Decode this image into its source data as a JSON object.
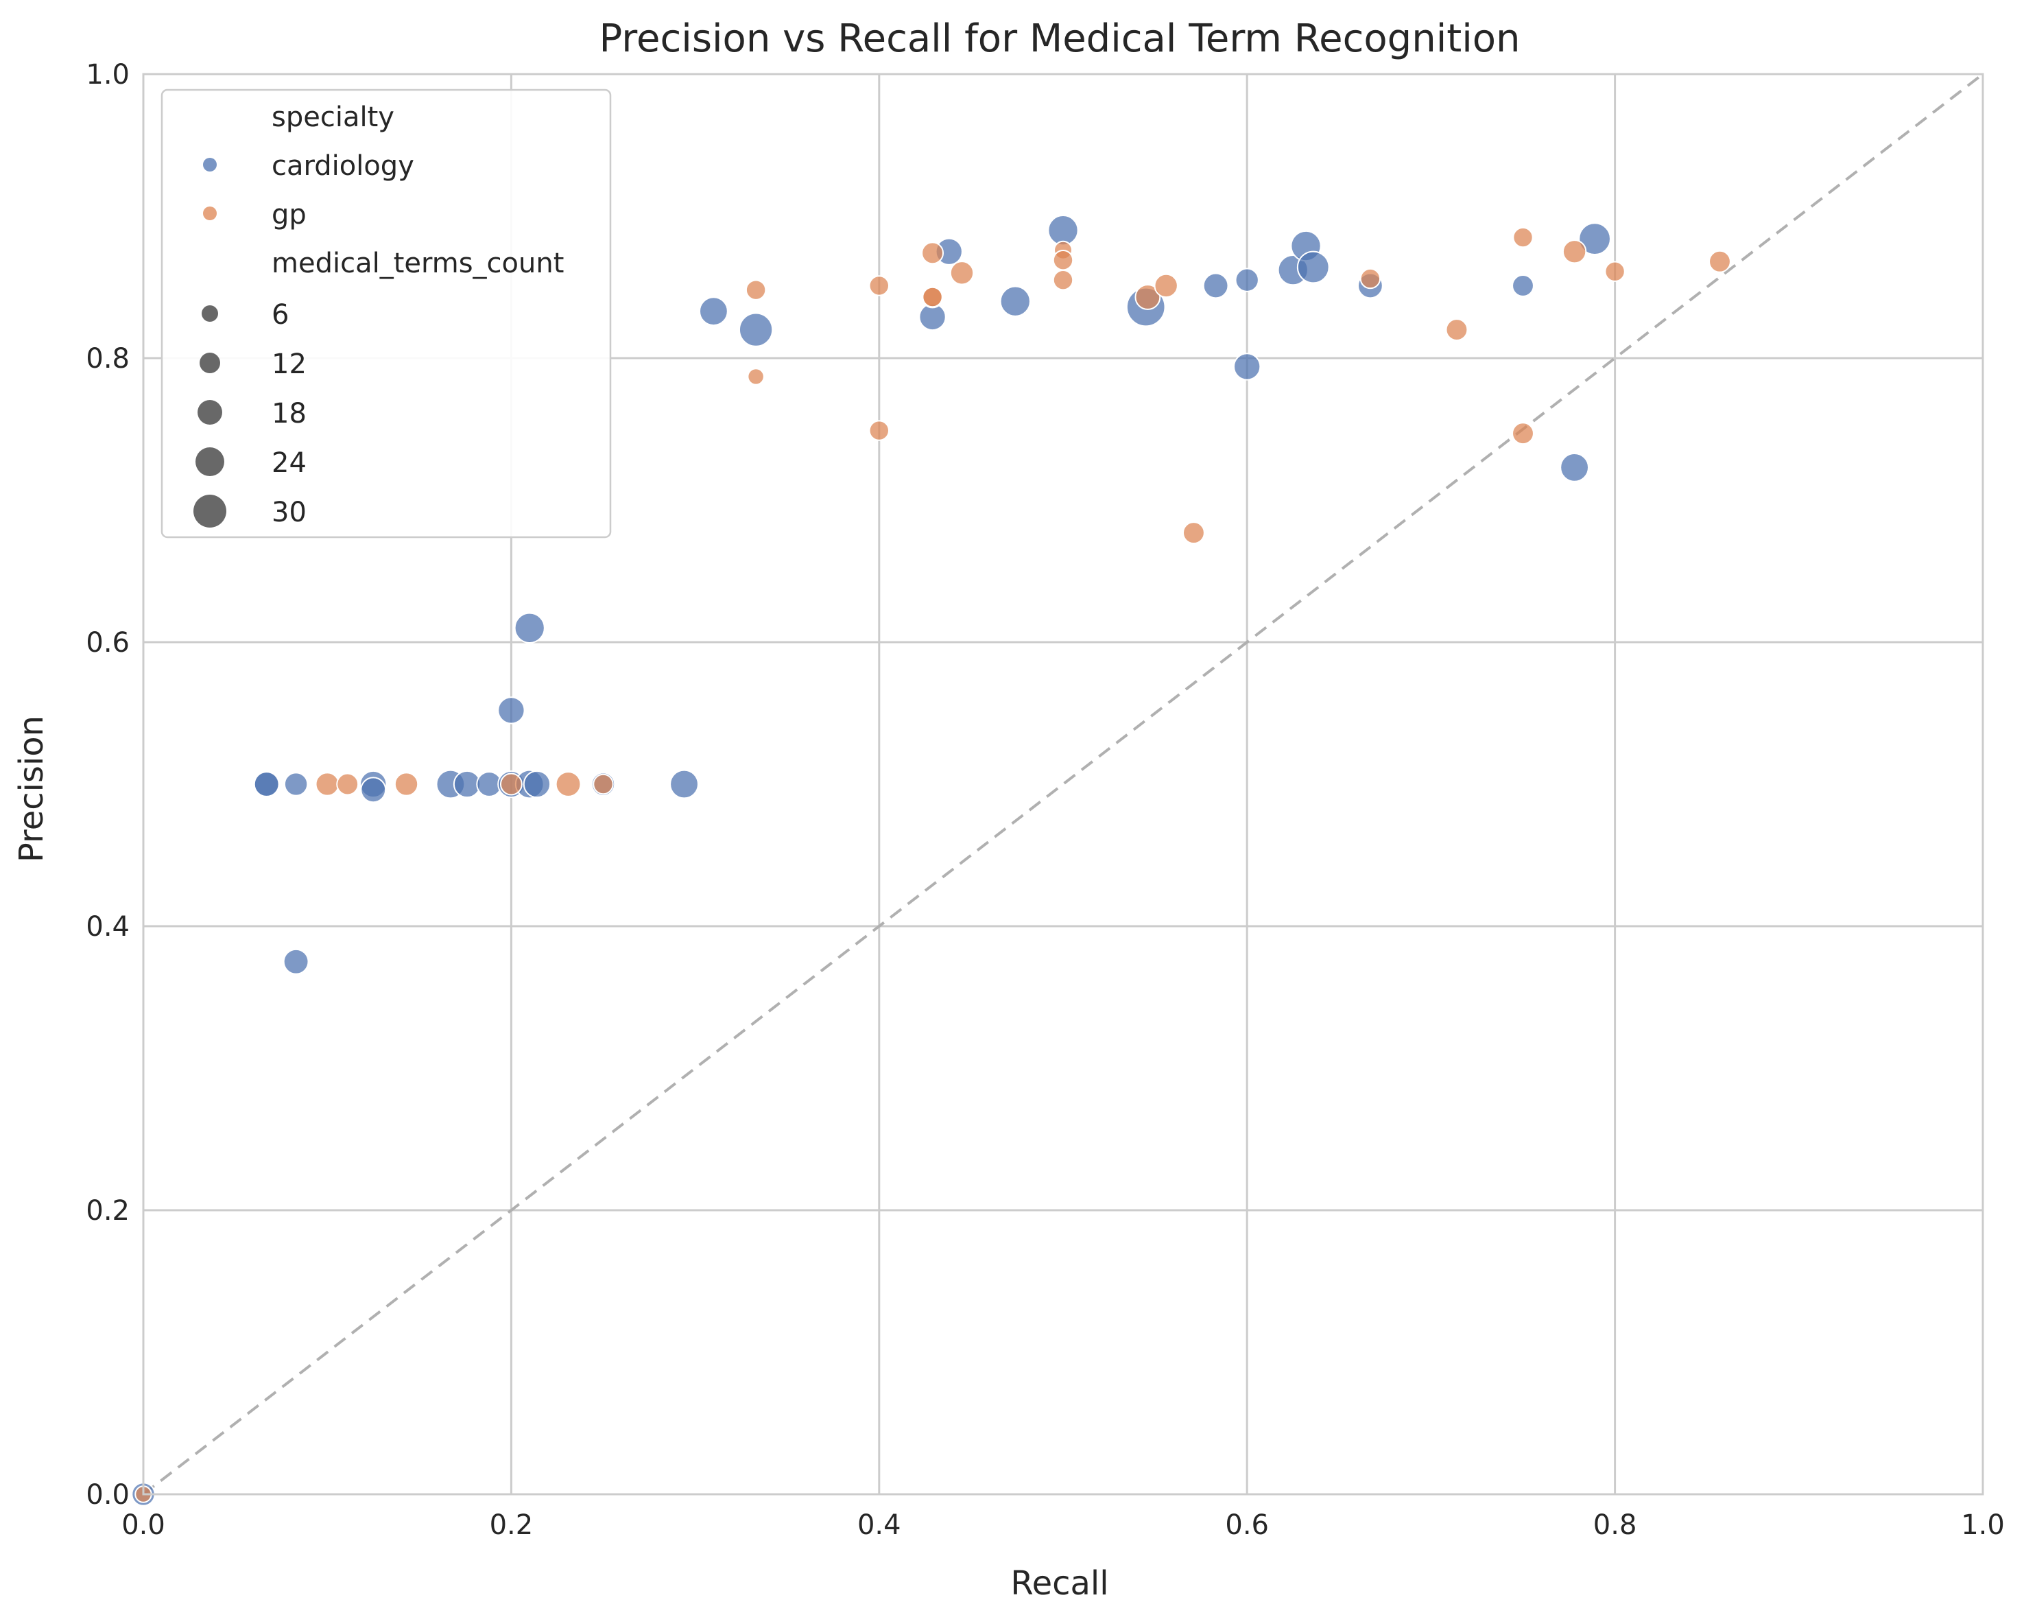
{
  "chart_data": {
    "type": "scatter",
    "title": "Precision vs Recall for Medical Term Recognition",
    "xlabel": "Recall",
    "ylabel": "Precision",
    "xlim": [
      0,
      1
    ],
    "ylim": [
      0,
      1
    ],
    "xticks": [
      "0.0",
      "0.2",
      "0.4",
      "0.6",
      "0.8",
      "1.0"
    ],
    "yticks": [
      "0.0",
      "0.2",
      "0.4",
      "0.6",
      "0.8",
      "1.0"
    ],
    "grid": true,
    "reference_line": {
      "style": "dashed",
      "from": [
        0,
        0
      ],
      "to": [
        1,
        1
      ],
      "color": "#b0b0b0"
    },
    "legend": {
      "placement": "top-left",
      "hue_title": "specialty",
      "size_title": "medical_terms_count",
      "size_entries": [
        "6",
        "12",
        "18",
        "24",
        "30"
      ]
    },
    "series": [
      {
        "name": "cardiology",
        "color": "#4c72b0",
        "points": [
          {
            "x": 0.0,
            "y": 0.0,
            "size": 14
          },
          {
            "x": 0.067,
            "y": 0.5,
            "size": 18
          },
          {
            "x": 0.067,
            "y": 0.5,
            "size": 16
          },
          {
            "x": 0.083,
            "y": 0.5,
            "size": 14
          },
          {
            "x": 0.083,
            "y": 0.375,
            "size": 16
          },
          {
            "x": 0.125,
            "y": 0.5,
            "size": 18
          },
          {
            "x": 0.125,
            "y": 0.496,
            "size": 16
          },
          {
            "x": 0.167,
            "y": 0.5,
            "size": 20
          },
          {
            "x": 0.176,
            "y": 0.5,
            "size": 18
          },
          {
            "x": 0.188,
            "y": 0.5,
            "size": 16
          },
          {
            "x": 0.2,
            "y": 0.5,
            "size": 18
          },
          {
            "x": 0.2,
            "y": 0.552,
            "size": 18
          },
          {
            "x": 0.21,
            "y": 0.5,
            "size": 20
          },
          {
            "x": 0.214,
            "y": 0.5,
            "size": 18
          },
          {
            "x": 0.21,
            "y": 0.61,
            "size": 22
          },
          {
            "x": 0.25,
            "y": 0.5,
            "size": 14
          },
          {
            "x": 0.294,
            "y": 0.5,
            "size": 20
          },
          {
            "x": 0.31,
            "y": 0.833,
            "size": 20
          },
          {
            "x": 0.333,
            "y": 0.82,
            "size": 26
          },
          {
            "x": 0.429,
            "y": 0.829,
            "size": 18
          },
          {
            "x": 0.438,
            "y": 0.875,
            "size": 18
          },
          {
            "x": 0.474,
            "y": 0.84,
            "size": 22
          },
          {
            "x": 0.5,
            "y": 0.89,
            "size": 22
          },
          {
            "x": 0.545,
            "y": 0.836,
            "size": 32
          },
          {
            "x": 0.583,
            "y": 0.851,
            "size": 16
          },
          {
            "x": 0.6,
            "y": 0.855,
            "size": 14
          },
          {
            "x": 0.6,
            "y": 0.794,
            "size": 18
          },
          {
            "x": 0.625,
            "y": 0.862,
            "size": 22
          },
          {
            "x": 0.632,
            "y": 0.879,
            "size": 22
          },
          {
            "x": 0.636,
            "y": 0.864,
            "size": 24
          },
          {
            "x": 0.667,
            "y": 0.851,
            "size": 16
          },
          {
            "x": 0.75,
            "y": 0.851,
            "size": 12
          },
          {
            "x": 0.778,
            "y": 0.723,
            "size": 20
          },
          {
            "x": 0.789,
            "y": 0.884,
            "size": 24
          }
        ]
      },
      {
        "name": "gp",
        "color": "#dd8452",
        "points": [
          {
            "x": 0.0,
            "y": 0.0,
            "size": 6
          },
          {
            "x": 0.1,
            "y": 0.5,
            "size": 14
          },
          {
            "x": 0.111,
            "y": 0.5,
            "size": 12
          },
          {
            "x": 0.143,
            "y": 0.5,
            "size": 14
          },
          {
            "x": 0.2,
            "y": 0.5,
            "size": 12
          },
          {
            "x": 0.231,
            "y": 0.5,
            "size": 16
          },
          {
            "x": 0.25,
            "y": 0.5,
            "size": 10
          },
          {
            "x": 0.333,
            "y": 0.848,
            "size": 10
          },
          {
            "x": 0.333,
            "y": 0.787,
            "size": 6
          },
          {
            "x": 0.4,
            "y": 0.851,
            "size": 10
          },
          {
            "x": 0.4,
            "y": 0.749,
            "size": 10
          },
          {
            "x": 0.429,
            "y": 0.874,
            "size": 12
          },
          {
            "x": 0.429,
            "y": 0.843,
            "size": 12
          },
          {
            "x": 0.429,
            "y": 0.843,
            "size": 10
          },
          {
            "x": 0.445,
            "y": 0.86,
            "size": 14
          },
          {
            "x": 0.5,
            "y": 0.876,
            "size": 8
          },
          {
            "x": 0.5,
            "y": 0.869,
            "size": 10
          },
          {
            "x": 0.5,
            "y": 0.855,
            "size": 10
          },
          {
            "x": 0.546,
            "y": 0.843,
            "size": 16
          },
          {
            "x": 0.556,
            "y": 0.851,
            "size": 14
          },
          {
            "x": 0.571,
            "y": 0.677,
            "size": 12
          },
          {
            "x": 0.667,
            "y": 0.856,
            "size": 10
          },
          {
            "x": 0.714,
            "y": 0.82,
            "size": 12
          },
          {
            "x": 0.75,
            "y": 0.885,
            "size": 10
          },
          {
            "x": 0.75,
            "y": 0.747,
            "size": 12
          },
          {
            "x": 0.778,
            "y": 0.875,
            "size": 14
          },
          {
            "x": 0.8,
            "y": 0.861,
            "size": 10
          },
          {
            "x": 0.857,
            "y": 0.868,
            "size": 12
          }
        ]
      }
    ]
  }
}
